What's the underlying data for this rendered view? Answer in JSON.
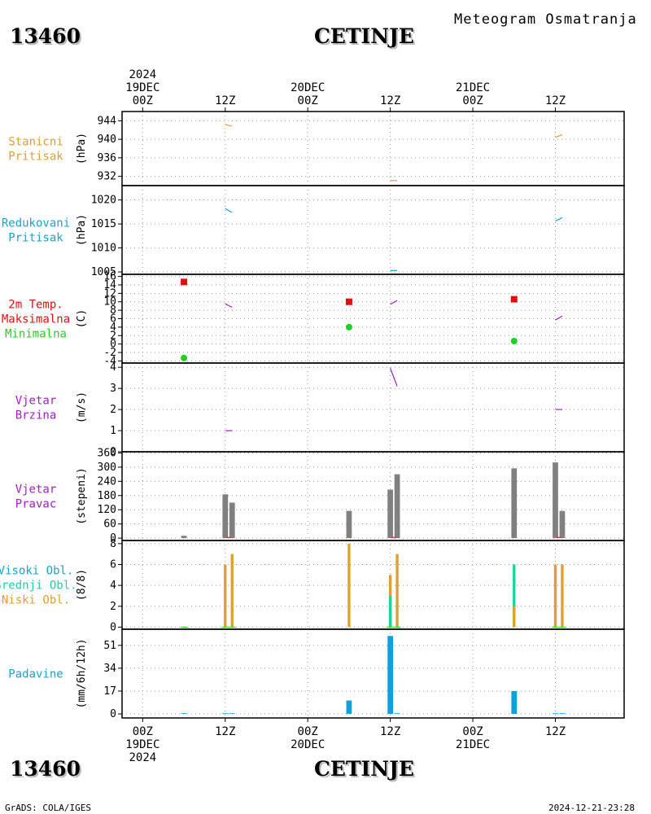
{
  "header": {
    "station_id": "13460",
    "station_name": "CETINJE",
    "title": "Meteogram Osmatranja"
  },
  "footer": {
    "credit": "GrADS: COLA/IGES",
    "timestamp": "2024-12-21-23:28"
  },
  "colors": {
    "orange": "#e0a030",
    "cyan": "#18a4cc",
    "red": "#e01010",
    "green": "#20d020",
    "purple": "#a020c0",
    "gray": "#808080",
    "blue": "#10a0e0",
    "teal": "#20d0a0",
    "grid": "#999999"
  },
  "time_axis": {
    "top": [
      {
        "t": 0,
        "lines": [
          "2024",
          "19DEC",
          "00Z"
        ]
      },
      {
        "t": 12,
        "lines": [
          "12Z"
        ]
      },
      {
        "t": 24,
        "lines": [
          "20DEC",
          "00Z"
        ]
      },
      {
        "t": 36,
        "lines": [
          "12Z"
        ]
      },
      {
        "t": 48,
        "lines": [
          "21DEC",
          "00Z"
        ]
      },
      {
        "t": 60,
        "lines": [
          "12Z"
        ]
      }
    ],
    "bottom": [
      {
        "t": 0,
        "lines": [
          "00Z",
          "19DEC",
          "2024"
        ]
      },
      {
        "t": 12,
        "lines": [
          "12Z"
        ]
      },
      {
        "t": 24,
        "lines": [
          "00Z",
          "20DEC"
        ]
      },
      {
        "t": 36,
        "lines": [
          "12Z"
        ]
      },
      {
        "t": 48,
        "lines": [
          "00Z",
          "21DEC"
        ]
      },
      {
        "t": 60,
        "lines": [
          "12Z"
        ]
      }
    ],
    "range_hours": [
      -3,
      70
    ]
  },
  "chart_data": [
    {
      "type": "line",
      "panel": "stanicni",
      "labels": [
        {
          "text": "Stanicni",
          "color": "orange"
        },
        {
          "text": "Pritisak",
          "color": "orange"
        }
      ],
      "unit": "(hPa)",
      "ylim": [
        930,
        946
      ],
      "yticks": [
        932,
        936,
        940,
        944
      ],
      "series": [
        {
          "color": "orange",
          "segments": [
            [
              [
                12,
                943.2
              ],
              [
                13,
                942.8
              ]
            ],
            [
              [
                36,
                931.1
              ],
              [
                37,
                931.1
              ]
            ],
            [
              [
                60,
                940.4
              ],
              [
                61,
                941.0
              ]
            ]
          ]
        }
      ]
    },
    {
      "type": "line",
      "panel": "redukovani",
      "labels": [
        {
          "text": "Redukovani",
          "color": "cyan"
        },
        {
          "text": "Pritisak",
          "color": "cyan"
        }
      ],
      "unit": "(hPa)",
      "ylim": [
        1004.5,
        1023
      ],
      "yticks": [
        1005,
        1010,
        1015,
        1020
      ],
      "series": [
        {
          "color": "cyan",
          "segments": [
            [
              [
                12,
                1018.2
              ],
              [
                13,
                1017.4
              ]
            ],
            [
              [
                36,
                1005.3
              ],
              [
                37,
                1005.3
              ]
            ],
            [
              [
                60,
                1015.6
              ],
              [
                61,
                1016.3
              ]
            ]
          ]
        }
      ]
    },
    {
      "type": "line",
      "panel": "temperatura",
      "labels": [
        {
          "text": "2m Temp.",
          "color": "red"
        },
        {
          "text": "Maksimalna",
          "color": "red"
        },
        {
          "text": "Minimalna",
          "color": "green"
        }
      ],
      "unit": "(C)",
      "ylim": [
        -4.5,
        16.5
      ],
      "yticks": [
        -4,
        -2,
        0,
        2,
        4,
        6,
        8,
        10,
        12,
        14,
        16
      ],
      "series": [
        {
          "color": "purple",
          "segments": [
            [
              [
                12,
                9.5
              ],
              [
                13,
                8.7
              ]
            ],
            [
              [
                36,
                9.4
              ],
              [
                37,
                10.3
              ]
            ],
            [
              [
                60,
                5.7
              ],
              [
                61,
                6.6
              ]
            ]
          ]
        }
      ],
      "max_points": {
        "color": "red",
        "points": [
          [
            6,
            14.7
          ],
          [
            30,
            10.0
          ],
          [
            54,
            10.6
          ]
        ]
      },
      "min_points": {
        "color": "green",
        "points": [
          [
            6,
            -3.3
          ],
          [
            30,
            4.0
          ],
          [
            54,
            0.7
          ]
        ]
      }
    },
    {
      "type": "line",
      "panel": "vjetar-brzina",
      "labels": [
        {
          "text": "Vjetar",
          "color": "purple"
        },
        {
          "text": "Brzina",
          "color": "purple"
        }
      ],
      "unit": "(m/s)",
      "ylim": [
        0,
        4.2
      ],
      "yticks": [
        0,
        1,
        2,
        3,
        4
      ],
      "series": [
        {
          "color": "purple",
          "segments": [
            [
              [
                12,
                1.0
              ],
              [
                13,
                1.0
              ]
            ],
            [
              [
                36,
                3.95
              ],
              [
                37,
                3.1
              ]
            ],
            [
              [
                60,
                2.0
              ],
              [
                61,
                2.0
              ]
            ]
          ]
        }
      ]
    },
    {
      "type": "bar",
      "panel": "vjetar-pravac",
      "labels": [
        {
          "text": "Vjetar",
          "color": "purple"
        },
        {
          "text": "Pravac",
          "color": "purple"
        }
      ],
      "unit": "(stepeni)",
      "ylim": [
        -10,
        365
      ],
      "yticks": [
        0,
        60,
        120,
        180,
        240,
        300,
        360
      ],
      "ytick_labels": [
        "0",
        "60",
        "120",
        "180",
        "240",
        "300",
        "360"
      ],
      "bars": [
        {
          "t": 6,
          "v": 10,
          "color": "gray"
        },
        {
          "t": 12,
          "v": 185,
          "color": "gray"
        },
        {
          "t": 13,
          "v": 150,
          "color": "gray"
        },
        {
          "t": 30,
          "v": 115,
          "color": "gray"
        },
        {
          "t": 36,
          "v": 205,
          "color": "gray"
        },
        {
          "t": 37,
          "v": 270,
          "color": "gray"
        },
        {
          "t": 54,
          "v": 295,
          "color": "gray"
        },
        {
          "t": 60,
          "v": 320,
          "color": "gray"
        },
        {
          "t": 61,
          "v": 115,
          "color": "gray"
        }
      ],
      "bar_width_hours": 0.8,
      "ticks_red": [
        12.5,
        36.5,
        60.5
      ]
    },
    {
      "type": "bar",
      "panel": "oblaci",
      "labels": [
        {
          "text": "Visoki Obl.",
          "color": "cyan"
        },
        {
          "text": "Srednji Obl.",
          "color": "teal"
        },
        {
          "text": "Niski Obl.",
          "color": "orange"
        }
      ],
      "unit": "(8/8)",
      "ylim": [
        -0.2,
        8.3
      ],
      "yticks": [
        0,
        2,
        4,
        6,
        8
      ],
      "bars": [
        {
          "t": 12,
          "v": 6,
          "color": "orange"
        },
        {
          "t": 13,
          "v": 7,
          "color": "orange"
        },
        {
          "t": 30,
          "v": 8,
          "color": "orange"
        },
        {
          "t": 36,
          "v": 5,
          "color": "orange"
        },
        {
          "t": 36,
          "v": 3,
          "color": "teal"
        },
        {
          "t": 37,
          "v": 7,
          "color": "orange"
        },
        {
          "t": 54,
          "v": 6,
          "color": "teal"
        },
        {
          "t": 54,
          "v": 2,
          "color": "orange"
        },
        {
          "t": 60,
          "v": 6,
          "color": "orange"
        },
        {
          "t": 61,
          "v": 6,
          "color": "orange"
        }
      ],
      "bar_width_hours": 0.4,
      "baseline_marks": [
        [
          5.5,
          6.5
        ],
        [
          11.5,
          13.5
        ],
        [
          35.5,
          37.5
        ],
        [
          59.5,
          61.5
        ]
      ]
    },
    {
      "type": "bar",
      "panel": "padavine",
      "labels": [
        {
          "text": "Padavine",
          "color": "cyan"
        }
      ],
      "unit": "(mm/6h/12h)",
      "ylim": [
        -3,
        63
      ],
      "yticks": [
        0,
        17,
        34,
        51
      ],
      "bars": [
        {
          "t": 6,
          "v": 0.5,
          "color": "blue"
        },
        {
          "t": 12,
          "v": 0.5,
          "color": "blue"
        },
        {
          "t": 13,
          "v": 0.5,
          "color": "blue"
        },
        {
          "t": 30,
          "v": 10,
          "color": "blue"
        },
        {
          "t": 36,
          "v": 58,
          "color": "blue"
        },
        {
          "t": 37,
          "v": 0.5,
          "color": "blue"
        },
        {
          "t": 54,
          "v": 17,
          "color": "blue"
        },
        {
          "t": 60,
          "v": 0.5,
          "color": "blue"
        },
        {
          "t": 61,
          "v": 0.5,
          "color": "blue"
        }
      ],
      "bar_width_hours": 0.8
    }
  ]
}
